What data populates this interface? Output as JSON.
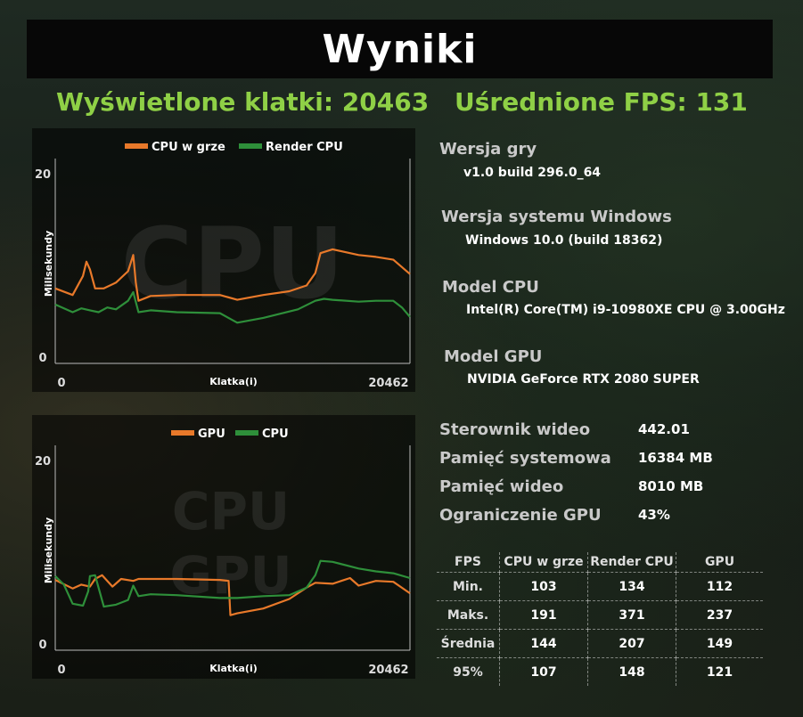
{
  "header": {
    "title": "Wyniki"
  },
  "summary": {
    "frames_label": "Wyświetlone klatki: 20463",
    "fps_label": "Uśrednione FPS: 131"
  },
  "colors": {
    "orange": "#e8792a",
    "green": "#2e8f3a",
    "accent": "#8fd046"
  },
  "chart_data": [
    {
      "type": "line",
      "watermark": "CPU",
      "xlabel": "Klatka(i)",
      "ylabel": "Milisekundy",
      "x_ticks": [
        "0",
        "20462"
      ],
      "y_ticks": [
        "0",
        "20"
      ],
      "xlim": [
        0,
        20462
      ],
      "ylim": [
        0,
        20
      ],
      "legend": "top",
      "series": [
        {
          "name": "CPU w grze",
          "color": "#e8792a",
          "x": [
            0,
            1000,
            1600,
            1800,
            2000,
            2300,
            2800,
            3500,
            4200,
            4500,
            4650,
            4800,
            5500,
            7000,
            9500,
            10500,
            12000,
            13500,
            14500,
            15000,
            15300,
            16000,
            17500,
            18500,
            19500,
            20462
          ],
          "y": [
            7.5,
            6.8,
            8.8,
            10.3,
            9.5,
            7.5,
            7.5,
            8.1,
            9.3,
            11.0,
            8.1,
            6.2,
            6.7,
            6.8,
            6.8,
            6.3,
            6.8,
            7.2,
            7.8,
            9.1,
            11.2,
            11.6,
            11.0,
            10.8,
            10.5,
            9.0
          ]
        },
        {
          "name": "Render CPU",
          "color": "#2e8f3a",
          "x": [
            0,
            1000,
            1500,
            2000,
            2500,
            3000,
            3500,
            4200,
            4500,
            4800,
            5500,
            7000,
            9500,
            10500,
            12000,
            14000,
            15000,
            15500,
            16000,
            17500,
            18500,
            19500,
            20000,
            20462
          ],
          "y": [
            5.8,
            5.0,
            5.4,
            5.2,
            5.0,
            5.5,
            5.3,
            6.2,
            7.1,
            5.0,
            5.2,
            5.0,
            4.9,
            3.9,
            4.4,
            5.3,
            6.2,
            6.4,
            6.3,
            6.1,
            6.2,
            6.2,
            5.5,
            4.5
          ]
        }
      ]
    },
    {
      "type": "line",
      "watermark": "CPU GPU",
      "xlabel": "Klatka(i)",
      "ylabel": "Milisekundy",
      "x_ticks": [
        "0",
        "20462"
      ],
      "y_ticks": [
        "0",
        "20"
      ],
      "xlim": [
        0,
        20462
      ],
      "ylim": [
        0,
        20
      ],
      "legend": "top",
      "series": [
        {
          "name": "GPU",
          "color": "#e8792a",
          "x": [
            0,
            1000,
            1500,
            2000,
            2300,
            2700,
            3300,
            3800,
            4500,
            4800,
            5500,
            7000,
            9500,
            10000,
            10100,
            10500,
            12000,
            13500,
            14500,
            15000,
            16000,
            17000,
            17500,
            18500,
            19500,
            20462
          ],
          "y": [
            7.0,
            6.1,
            6.5,
            6.3,
            7.1,
            7.5,
            6.3,
            7.1,
            6.9,
            7.1,
            7.1,
            7.1,
            7.0,
            6.9,
            3.3,
            3.5,
            4.0,
            5.0,
            6.2,
            6.7,
            6.6,
            7.2,
            6.4,
            6.9,
            6.8,
            5.6
          ]
        },
        {
          "name": "CPU",
          "color": "#2e8f3a",
          "x": [
            0,
            500,
            1000,
            1600,
            1900,
            2000,
            2300,
            2800,
            3500,
            4200,
            4500,
            4800,
            5500,
            7000,
            9500,
            10500,
            12000,
            13500,
            14500,
            15000,
            15300,
            16000,
            17500,
            18500,
            19500,
            20462
          ],
          "y": [
            7.4,
            6.5,
            4.5,
            4.3,
            5.8,
            7.4,
            7.5,
            4.2,
            4.4,
            4.9,
            6.4,
            5.3,
            5.5,
            5.4,
            5.1,
            5.1,
            5.3,
            5.4,
            6.2,
            7.5,
            9.0,
            8.9,
            8.2,
            7.9,
            7.7,
            7.2
          ]
        }
      ]
    }
  ],
  "info": [
    {
      "label": "Wersja gry",
      "value": "v1.0 build 296.0_64"
    },
    {
      "label": "Wersja systemu Windows",
      "value": "Windows 10.0 (build 18362)"
    },
    {
      "label": "Model CPU",
      "value": "Intel(R) Core(TM) i9-10980XE CPU @ 3.00GHz"
    },
    {
      "label": "Model GPU",
      "value": "NVIDIA GeForce RTX 2080 SUPER"
    }
  ],
  "specs": [
    {
      "label": "Sterownik wideo",
      "value": "442.01"
    },
    {
      "label": "Pamięć systemowa",
      "value": "16384 MB"
    },
    {
      "label": "Pamięć wideo",
      "value": "8010 MB"
    },
    {
      "label": "Ograniczenie GPU",
      "value": "43%"
    }
  ],
  "stats": {
    "headers": [
      "FPS",
      "CPU w grze",
      "Render CPU",
      "GPU"
    ],
    "rows": [
      [
        "Min.",
        "103",
        "134",
        "112"
      ],
      [
        "Maks.",
        "191",
        "371",
        "237"
      ],
      [
        "Średnia",
        "144",
        "207",
        "149"
      ],
      [
        "95%",
        "107",
        "148",
        "121"
      ]
    ]
  }
}
